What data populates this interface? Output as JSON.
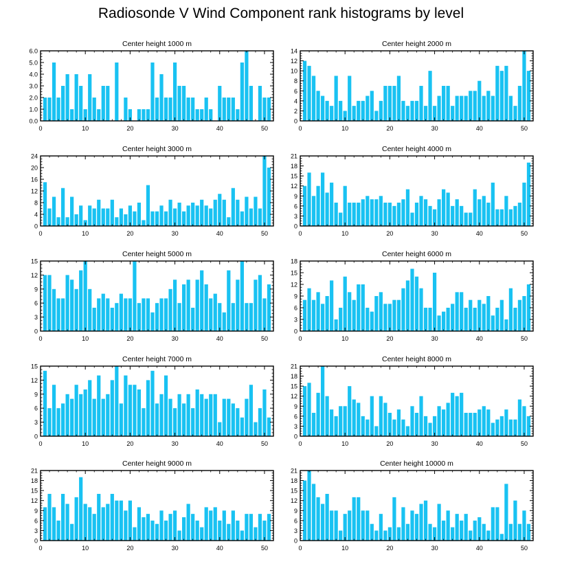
{
  "title": "Radiosonde V Wind Component rank histograms by level",
  "x_ticks": [
    0,
    10,
    20,
    30,
    40,
    50
  ],
  "bar_color": "#19c2f2",
  "chart_data": [
    {
      "type": "bar",
      "title": "Center height 1000 m",
      "xlim": [
        0,
        52
      ],
      "ylim": [
        0,
        6
      ],
      "yticks": [
        "0.0",
        "1.0",
        "2.0",
        "3.0",
        "4.0",
        "5.0",
        "6.0"
      ],
      "values": [
        2,
        2,
        5,
        2,
        3,
        4,
        1,
        4,
        3,
        1,
        4,
        2,
        1,
        3,
        3,
        0,
        5,
        0,
        2,
        1,
        0,
        1,
        1,
        1,
        5,
        2,
        4,
        2,
        2,
        5,
        3,
        3,
        2,
        2,
        1,
        1,
        2,
        1,
        0,
        3,
        2,
        2,
        2,
        1,
        5,
        6,
        3,
        0,
        3,
        2,
        2
      ]
    },
    {
      "type": "bar",
      "title": "Center height 2000 m",
      "xlim": [
        0,
        52
      ],
      "ylim": [
        0,
        14
      ],
      "yticks": [
        "0",
        "2",
        "4",
        "6",
        "8",
        "10",
        "12",
        "14"
      ],
      "values": [
        12,
        11,
        9,
        6,
        5,
        4,
        3,
        9,
        4,
        2,
        9,
        3,
        4,
        4,
        5,
        6,
        2,
        4,
        7,
        7,
        7,
        9,
        4,
        3,
        4,
        4,
        7,
        3,
        10,
        3,
        5,
        7,
        7,
        3,
        5,
        5,
        5,
        6,
        6,
        8,
        5,
        6,
        5,
        11,
        10,
        11,
        5,
        3,
        7,
        14,
        10
      ]
    },
    {
      "type": "bar",
      "title": "Center height 3000 m",
      "xlim": [
        0,
        52
      ],
      "ylim": [
        0,
        24
      ],
      "yticks": [
        "0",
        "4",
        "8",
        "12",
        "16",
        "20",
        "24"
      ],
      "values": [
        15,
        6,
        10,
        3,
        13,
        3,
        10,
        4,
        7,
        2,
        7,
        6,
        9,
        6,
        6,
        9,
        3,
        6,
        4,
        7,
        5,
        8,
        2,
        14,
        5,
        5,
        7,
        5,
        9,
        6,
        8,
        5,
        7,
        8,
        7,
        9,
        7,
        6,
        9,
        11,
        9,
        3,
        13,
        9,
        5,
        10,
        6,
        10,
        6,
        24,
        20
      ]
    },
    {
      "type": "bar",
      "title": "Center height 4000 m",
      "xlim": [
        0,
        52
      ],
      "ylim": [
        0,
        21
      ],
      "yticks": [
        "0",
        "3",
        "6",
        "9",
        "12",
        "15",
        "18",
        "21"
      ],
      "values": [
        12,
        16,
        9,
        12,
        16,
        10,
        13,
        7,
        4,
        12,
        7,
        7,
        7,
        8,
        9,
        8,
        8,
        9,
        7,
        7,
        6,
        7,
        8,
        11,
        4,
        7,
        9,
        8,
        6,
        5,
        8,
        11,
        10,
        6,
        8,
        6,
        4,
        4,
        11,
        8,
        9,
        7,
        13,
        5,
        5,
        9,
        5,
        6,
        7,
        13,
        19
      ]
    },
    {
      "type": "bar",
      "title": "Center height 5000 m",
      "xlim": [
        0,
        52
      ],
      "ylim": [
        0,
        15
      ],
      "yticks": [
        "0",
        "3",
        "6",
        "9",
        "12",
        "15"
      ],
      "values": [
        12,
        12,
        9,
        7,
        7,
        12,
        11,
        9,
        13,
        15,
        9,
        5,
        7,
        8,
        7,
        5,
        6,
        8,
        7,
        7,
        15,
        6,
        7,
        7,
        4,
        6,
        7,
        7,
        9,
        11,
        6,
        10,
        11,
        5,
        11,
        13,
        10,
        7,
        8,
        6,
        4,
        13,
        6,
        11,
        15,
        6,
        6,
        11,
        12,
        7,
        10
      ]
    },
    {
      "type": "bar",
      "title": "Center height 6000 m",
      "xlim": [
        0,
        52
      ],
      "ylim": [
        0,
        18
      ],
      "yticks": [
        "0",
        "3",
        "6",
        "9",
        "12",
        "15",
        "18"
      ],
      "values": [
        8,
        11,
        8,
        10,
        7,
        9,
        13,
        3,
        6,
        14,
        10,
        8,
        12,
        12,
        6,
        5,
        9,
        10,
        7,
        7,
        8,
        8,
        11,
        13,
        16,
        14,
        11,
        6,
        6,
        15,
        4,
        5,
        6,
        7,
        10,
        10,
        6,
        8,
        6,
        8,
        7,
        9,
        4,
        6,
        8,
        3,
        11,
        6,
        8,
        9,
        12
      ]
    },
    {
      "type": "bar",
      "title": "Center height 7000 m",
      "xlim": [
        0,
        52
      ],
      "ylim": [
        0,
        15
      ],
      "yticks": [
        "0",
        "3",
        "6",
        "9",
        "12",
        "15"
      ],
      "values": [
        14,
        6,
        11,
        6,
        7,
        9,
        8,
        11,
        9,
        10,
        12,
        8,
        13,
        8,
        9,
        12,
        15,
        7,
        13,
        11,
        11,
        10,
        6,
        12,
        14,
        7,
        9,
        13,
        8,
        6,
        9,
        7,
        9,
        6,
        10,
        9,
        8,
        9,
        9,
        3,
        8,
        8,
        7,
        6,
        4,
        8,
        11,
        3,
        6,
        10,
        4
      ]
    },
    {
      "type": "bar",
      "title": "Center height 8000 m",
      "xlim": [
        0,
        52
      ],
      "ylim": [
        0,
        21
      ],
      "yticks": [
        "0",
        "3",
        "6",
        "9",
        "12",
        "15",
        "18",
        "21"
      ],
      "values": [
        15,
        16,
        7,
        13,
        21,
        12,
        8,
        6,
        9,
        9,
        15,
        11,
        10,
        6,
        5,
        12,
        3,
        12,
        10,
        7,
        5,
        8,
        5,
        3,
        9,
        7,
        12,
        6,
        4,
        6,
        9,
        8,
        10,
        13,
        12,
        13,
        7,
        7,
        7,
        8,
        9,
        8,
        4,
        5,
        6,
        8,
        5,
        5,
        11,
        9,
        6
      ]
    },
    {
      "type": "bar",
      "title": "Center height 9000 m",
      "xlim": [
        0,
        52
      ],
      "ylim": [
        0,
        21
      ],
      "yticks": [
        "0",
        "3",
        "6",
        "9",
        "12",
        "15",
        "18",
        "21"
      ],
      "values": [
        10,
        14,
        10,
        6,
        14,
        11,
        5,
        13,
        19,
        11,
        10,
        8,
        14,
        10,
        11,
        14,
        12,
        12,
        9,
        12,
        4,
        10,
        7,
        8,
        6,
        5,
        9,
        6,
        8,
        9,
        3,
        7,
        11,
        8,
        6,
        4,
        10,
        9,
        10,
        6,
        9,
        5,
        9,
        6,
        3,
        8,
        8,
        4,
        8,
        6,
        8
      ]
    },
    {
      "type": "bar",
      "title": "Center height 10000 m",
      "xlim": [
        0,
        52
      ],
      "ylim": [
        0,
        21
      ],
      "yticks": [
        "0",
        "3",
        "6",
        "9",
        "12",
        "15",
        "18",
        "21"
      ],
      "values": [
        18,
        21,
        17,
        13,
        11,
        14,
        9,
        9,
        3,
        8,
        9,
        13,
        13,
        9,
        9,
        5,
        3,
        8,
        3,
        4,
        13,
        4,
        10,
        5,
        9,
        8,
        11,
        12,
        5,
        4,
        11,
        6,
        9,
        4,
        8,
        6,
        8,
        3,
        6,
        7,
        5,
        3,
        10,
        10,
        2,
        17,
        5,
        12,
        5,
        9,
        5
      ]
    }
  ]
}
